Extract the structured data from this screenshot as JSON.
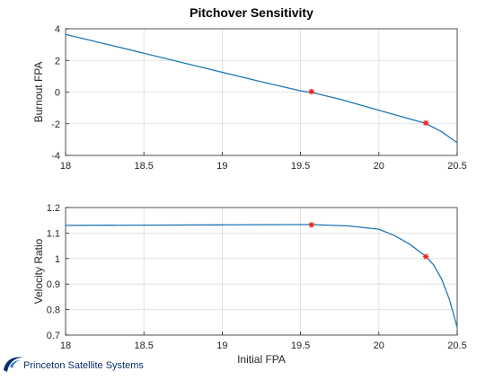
{
  "figure_title": "Pitchover Sensitivity",
  "logo": {
    "text": "Princeton Satellite Systems",
    "color": "#0a2e6e"
  },
  "colors": {
    "line": "#1f77b4",
    "marker": "#e8261a",
    "grid": "#dcdcdc",
    "axis": "#262626"
  },
  "chart_data": [
    {
      "type": "line",
      "title": "Pitchover Sensitivity",
      "xlabel": "",
      "ylabel": "Burnout FPA",
      "xlim": [
        18,
        20.5
      ],
      "ylim": [
        -4,
        4
      ],
      "xticks": [
        18,
        18.5,
        19,
        19.5,
        20,
        20.5
      ],
      "yticks": [
        -4,
        -2,
        0,
        2,
        4
      ],
      "xtick_labels": [
        "18",
        "18.5",
        "19",
        "19.5",
        "20",
        "20.5"
      ],
      "ytick_labels": [
        "-4",
        "-2",
        "0",
        "2",
        "4"
      ],
      "grid": true,
      "series": [
        {
          "x": [
            18.0,
            18.25,
            18.5,
            18.75,
            19.0,
            19.25,
            19.5,
            19.57,
            19.75,
            20.0,
            20.2,
            20.3,
            20.4,
            20.5
          ],
          "y": [
            3.65,
            3.05,
            2.45,
            1.85,
            1.25,
            0.65,
            0.08,
            -0.02,
            -0.45,
            -1.15,
            -1.7,
            -1.98,
            -2.5,
            -3.2
          ]
        }
      ],
      "markers": {
        "x": [
          19.57,
          20.3
        ],
        "y": [
          0.03,
          -1.95
        ]
      }
    },
    {
      "type": "line",
      "title": "",
      "xlabel": "Initial FPA",
      "ylabel": "Velocity Ratio",
      "xlim": [
        18,
        20.5
      ],
      "ylim": [
        0.7,
        1.2
      ],
      "xticks": [
        18,
        18.5,
        19,
        19.5,
        20,
        20.5
      ],
      "yticks": [
        0.7,
        0.8,
        0.9,
        1.0,
        1.1,
        1.2
      ],
      "xtick_labels": [
        "18",
        "18.5",
        "19",
        "19.5",
        "20",
        "20.5"
      ],
      "ytick_labels": [
        "0.7",
        "0.8",
        "0.9",
        "1",
        "1.1",
        "1.2"
      ],
      "grid": true,
      "series": [
        {
          "x": [
            18.0,
            18.5,
            19.0,
            19.5,
            19.57,
            19.8,
            20.0,
            20.1,
            20.2,
            20.3,
            20.35,
            20.4,
            20.45,
            20.5
          ],
          "y": [
            1.13,
            1.131,
            1.132,
            1.133,
            1.133,
            1.128,
            1.115,
            1.09,
            1.055,
            1.008,
            0.975,
            0.92,
            0.84,
            0.73
          ]
        }
      ],
      "markers": {
        "x": [
          19.57,
          20.3
        ],
        "y": [
          1.132,
          1.008
        ]
      }
    }
  ]
}
